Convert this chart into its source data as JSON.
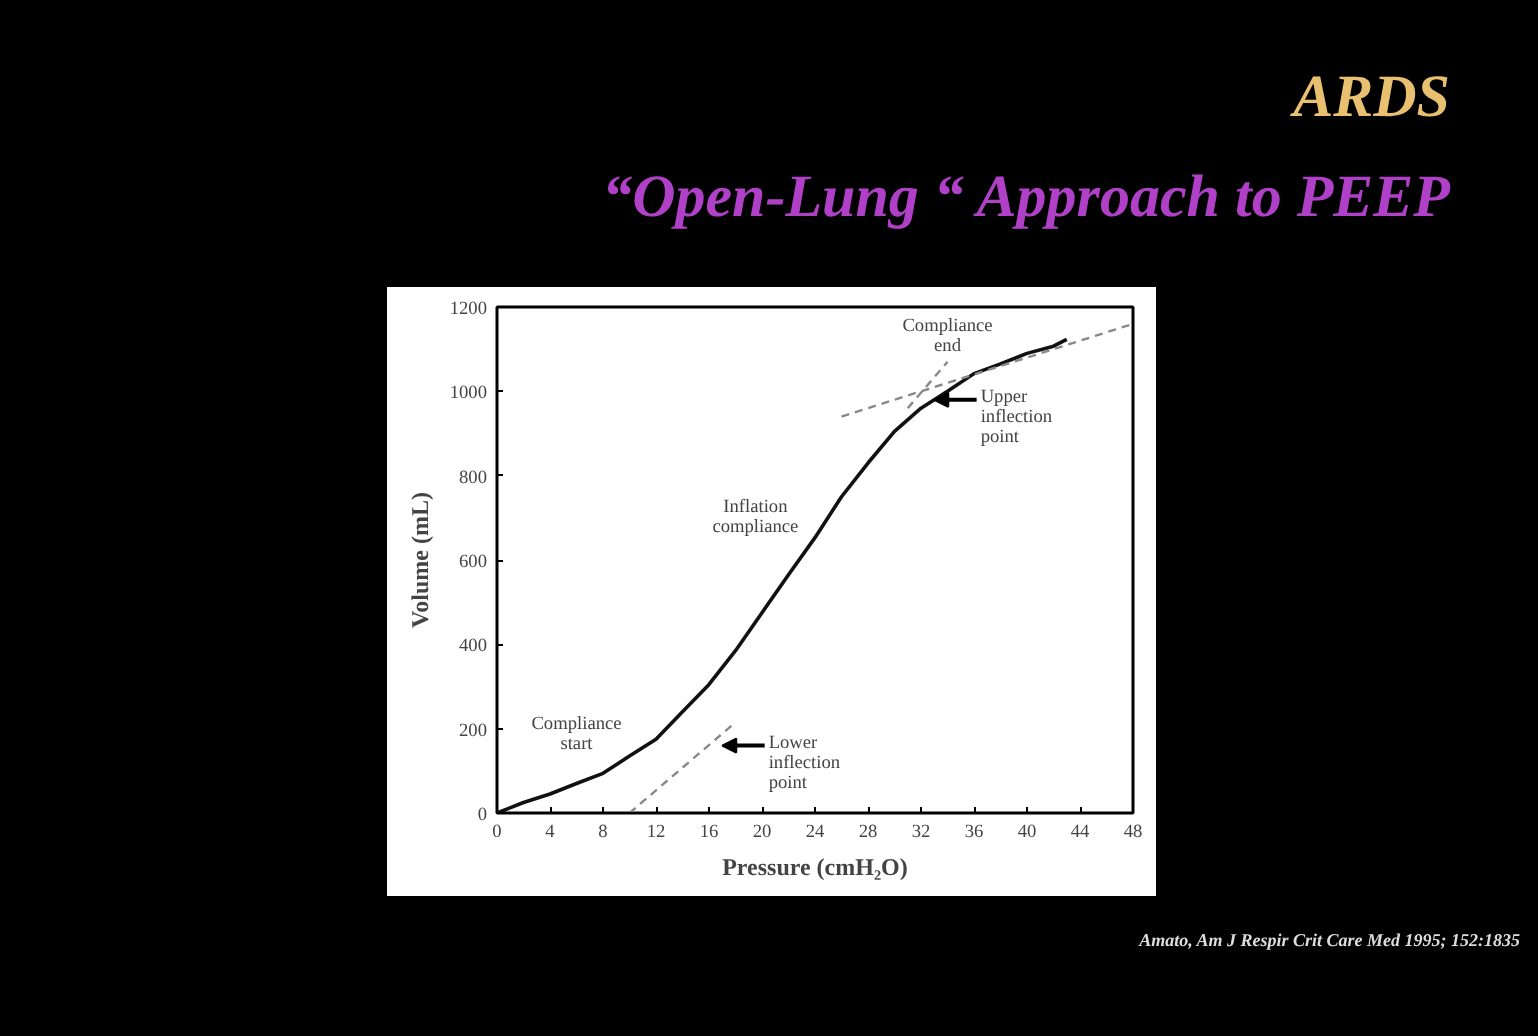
{
  "chart_data": {
    "type": "line",
    "title": "ARDS",
    "subtitle": "“Open-Lung “ Approach to PEEP",
    "xlabel": "Pressure (cmH₂O)",
    "ylabel": "Volume (mL)",
    "series": [
      {
        "color": "#111111",
        "line_style": "solid",
        "x": [
          0,
          2,
          4,
          6,
          8,
          10,
          12,
          14,
          16,
          18,
          20,
          22,
          24,
          26,
          28,
          30,
          32,
          34,
          36,
          38,
          40,
          42,
          43
        ],
        "values": [
          0,
          25,
          45,
          70,
          94,
          135,
          175,
          240,
          305,
          385,
          475,
          565,
          653,
          750,
          830,
          905,
          960,
          1000,
          1042,
          1065,
          1090,
          1107,
          1123
        ]
      },
      {
        "type": "line",
        "color": "#888888",
        "line_style": "dashed",
        "x": [
          10,
          18
        ],
        "values": [
          0,
          215
        ]
      },
      {
        "type": "line",
        "color": "#888888",
        "line_style": "dashed",
        "x": [
          31,
          34
        ],
        "values": [
          960,
          1070
        ]
      },
      {
        "type": "line",
        "color": "#888888",
        "line_style": "dashed",
        "x": [
          26,
          48
        ],
        "values": [
          940,
          1160
        ]
      }
    ],
    "xlim": [
      0,
      48
    ],
    "xticks": [
      0,
      4,
      8,
      12,
      16,
      20,
      24,
      28,
      32,
      36,
      40,
      44,
      48
    ],
    "ylim": [
      0,
      1200
    ],
    "yticks": [
      0,
      200,
      400,
      600,
      800,
      1000,
      1200
    ],
    "grid": false,
    "marker": "none",
    "annotations": [
      "Compliance start",
      "Inflation compliance",
      "Compliance end",
      {
        "text": "Upper inflection point",
        "x": 33,
        "y": 980
      },
      {
        "text": "Lower inflection point",
        "x": 17,
        "y": 160
      },
      "Amato, Am J Respir Crit Care Med 1995; 152:1835"
    ]
  }
}
